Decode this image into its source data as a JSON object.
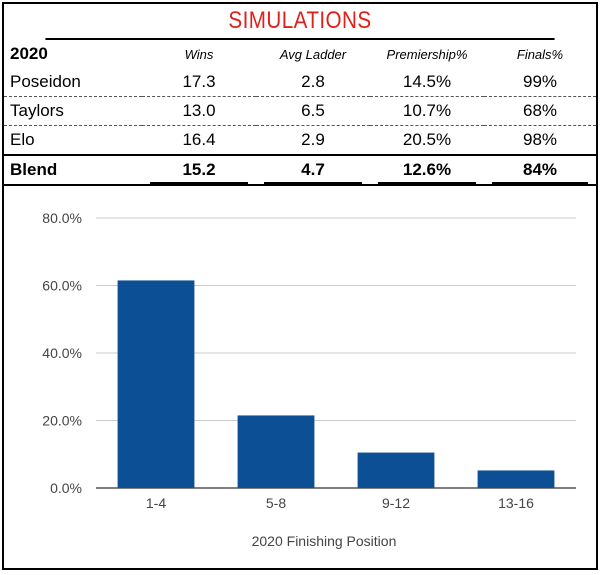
{
  "title": "SIMULATIONS",
  "table": {
    "year": "2020",
    "columns": [
      "Wins",
      "Avg Ladder",
      "Premiership%",
      "Finals%"
    ],
    "rows": [
      {
        "name": "Poseidon",
        "values": [
          "17.3",
          "2.8",
          "14.5%",
          "99%"
        ]
      },
      {
        "name": "Taylors",
        "values": [
          "13.0",
          "6.5",
          "10.7%",
          "68%"
        ]
      },
      {
        "name": "Elo",
        "values": [
          "16.4",
          "2.9",
          "20.5%",
          "98%"
        ]
      }
    ],
    "blend": {
      "name": "Blend",
      "values": [
        "15.2",
        "4.7",
        "12.6%",
        "84%"
      ]
    }
  },
  "chart_data": {
    "type": "bar",
    "categories": [
      "1-4",
      "5-8",
      "9-12",
      "13-16"
    ],
    "values": [
      61.5,
      21.5,
      10.5,
      5.2
    ],
    "ylim": [
      0,
      80
    ],
    "yticks": [
      0,
      20,
      40,
      60,
      80
    ],
    "ytick_labels": [
      "0.0%",
      "20.0%",
      "40.0%",
      "60.0%",
      "80.0%"
    ],
    "xlabel": "2020 Finishing Position",
    "ylabel": "",
    "bar_color": "#0d4f94",
    "grid": true
  }
}
